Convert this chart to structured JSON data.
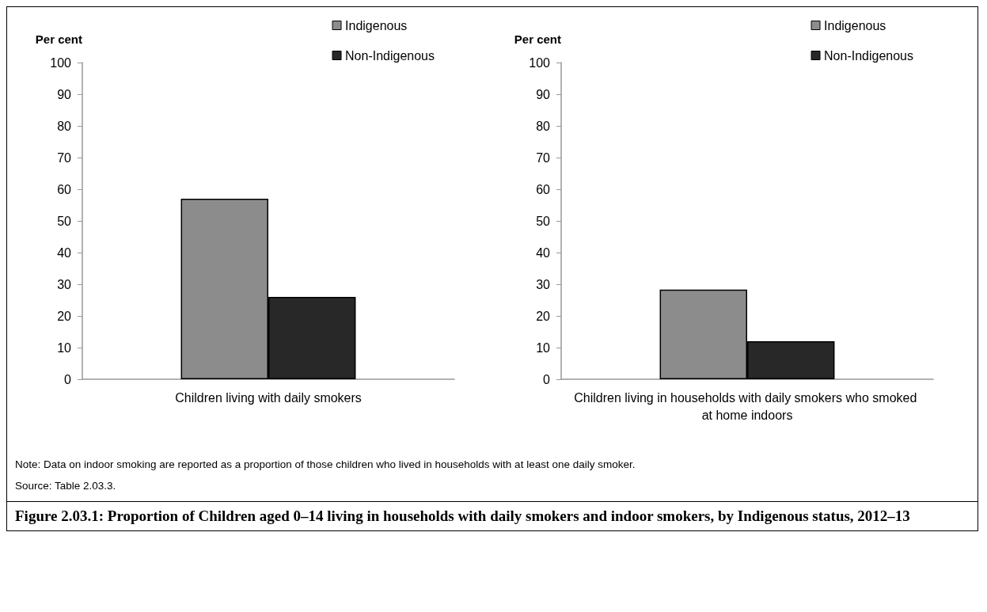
{
  "chart_data": [
    {
      "type": "bar",
      "ylabel": "Per cent",
      "categories": [
        "Children living with daily smokers"
      ],
      "series": [
        {
          "name": "Indigenous",
          "color": "#8c8c8c",
          "values": [
            57
          ]
        },
        {
          "name": "Non-Indigenous",
          "color": "#282828",
          "values": [
            26
          ]
        }
      ],
      "ylim": [
        0,
        100
      ],
      "yticks": [
        0,
        10,
        20,
        30,
        40,
        50,
        60,
        70,
        80,
        90,
        100
      ],
      "grid": false,
      "legend": "top right"
    },
    {
      "type": "bar",
      "ylabel": "Per cent",
      "categories": [
        "Children living in households with daily smokers who smoked at home indoors"
      ],
      "series": [
        {
          "name": "Indigenous",
          "color": "#8c8c8c",
          "values": [
            28.3
          ]
        },
        {
          "name": "Non-Indigenous",
          "color": "#282828",
          "values": [
            12
          ]
        }
      ],
      "ylim": [
        0,
        100
      ],
      "yticks": [
        0,
        10,
        20,
        30,
        40,
        50,
        60,
        70,
        80,
        90,
        100
      ],
      "grid": false,
      "legend": "top right",
      "annotations": [
        "Note: Data on indoor smoking are reported as a proportion of those children who lived in households with at least one daily smoker.",
        "Source: Table 2.03.3."
      ],
      "title": "Figure 2.03.1: Proportion of Children aged 0–14 living in households with daily smokers and indoor smokers, by Indigenous status, 2012–13"
    }
  ]
}
